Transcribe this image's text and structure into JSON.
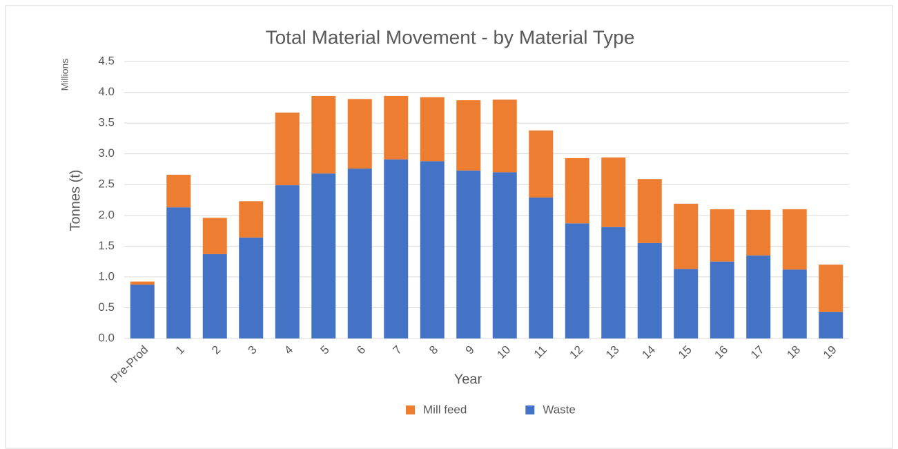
{
  "chart_data": {
    "type": "stacked_bar",
    "title": "Total Material Movement - by Material Type",
    "y_unit_label": "Millions",
    "y_label": "Tonnes (t)",
    "x_label": "Year",
    "categories": [
      "Pre-Prod",
      "1",
      "2",
      "3",
      "4",
      "5",
      "6",
      "7",
      "8",
      "9",
      "10",
      "11",
      "12",
      "13",
      "14",
      "15",
      "16",
      "17",
      "18",
      "19"
    ],
    "series": [
      {
        "name": "Waste",
        "color": "#4472c4",
        "values": [
          0.875,
          2.13,
          1.37,
          1.64,
          2.49,
          2.68,
          2.76,
          2.91,
          2.88,
          2.73,
          2.7,
          2.29,
          1.87,
          1.81,
          1.55,
          1.13,
          1.25,
          1.35,
          1.12,
          0.43
        ]
      },
      {
        "name": "Mill feed",
        "color": "#ed7d31",
        "values": [
          0.05,
          0.53,
          0.59,
          0.59,
          1.18,
          1.26,
          1.13,
          1.03,
          1.04,
          1.14,
          1.18,
          1.09,
          1.06,
          1.13,
          1.04,
          1.06,
          0.85,
          0.74,
          0.98,
          0.77
        ]
      }
    ],
    "ylim": [
      0,
      4.5
    ],
    "yticks": [
      {
        "value": 0,
        "label": "0.0"
      },
      0.5,
      {
        "value": 1,
        "label": "1.0"
      },
      1.5,
      {
        "value": 2,
        "label": "2.0"
      },
      2.5,
      {
        "value": 3,
        "label": "3.0"
      },
      3.5,
      {
        "value": 4,
        "label": "4.0"
      },
      4.5
    ],
    "grid": true,
    "legend_position": "bottom"
  }
}
